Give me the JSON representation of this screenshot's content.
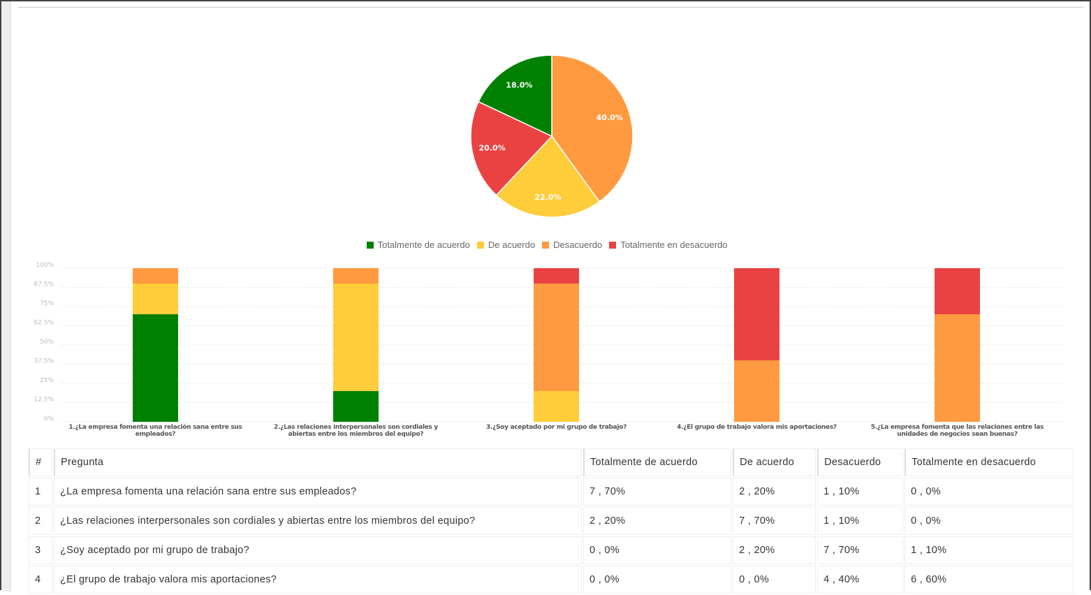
{
  "colors": {
    "Totalmente de acuerdo": "#008000",
    "De acuerdo": "#ffcc3a",
    "Desacuerdo": "#ff9a40",
    "Totalmente en desacuerdo": "#ea4242"
  },
  "chart_data": [
    {
      "type": "pie",
      "labels": [
        "Desacuerdo",
        "De acuerdo",
        "Totalmente en desacuerdo",
        "Totalmente de acuerdo"
      ],
      "values": [
        40,
        22,
        20,
        18
      ],
      "value_labels": [
        "40.0%",
        "22.0%",
        "20.0%",
        "18.0%"
      ]
    },
    {
      "type": "bar",
      "stacked": true,
      "categories": [
        "1.¿La empresa fomenta una relación sana entre sus empleados?",
        "2.¿Las relaciones interpersonales son cordiales y abiertas entre los miembros del equipo?",
        "3.¿Soy aceptado por mi grupo de trabajo?",
        "4.¿El grupo de trabajo valora mis aportaciones?",
        "5.¿La empresa fomenta que las relaciones entre las unidades de negocios sean buenas?"
      ],
      "series": [
        {
          "name": "Totalmente de acuerdo",
          "values": [
            70,
            20,
            0,
            0,
            0
          ]
        },
        {
          "name": "De acuerdo",
          "values": [
            20,
            70,
            20,
            0,
            0
          ]
        },
        {
          "name": "Desacuerdo",
          "values": [
            10,
            10,
            70,
            40,
            70
          ]
        },
        {
          "name": "Totalmente en desacuerdo",
          "values": [
            0,
            0,
            10,
            60,
            30
          ]
        }
      ],
      "ylim": [
        0,
        100
      ],
      "yticks": [
        "0%",
        "12.5%",
        "25%",
        "37.5%",
        "50%",
        "62.5%",
        "75%",
        "87.5%",
        "100%"
      ],
      "legend": "top-center",
      "grid": true
    }
  ],
  "legend": [
    "Totalmente de acuerdo",
    "De acuerdo",
    "Desacuerdo",
    "Totalmente en desacuerdo"
  ],
  "table": {
    "headers": [
      "#",
      "Pregunta",
      "Totalmente de acuerdo",
      "De acuerdo",
      "Desacuerdo",
      "Totalmente en desacuerdo"
    ],
    "rows": [
      [
        "1",
        "¿La empresa fomenta una relación sana entre sus empleados?",
        "7 , 70%",
        "2 , 20%",
        "1 , 10%",
        "0 , 0%"
      ],
      [
        "2",
        "¿Las relaciones interpersonales son cordiales y abiertas entre los miembros del equipo?",
        "2 , 20%",
        "7 , 70%",
        "1 , 10%",
        "0 , 0%"
      ],
      [
        "3",
        "¿Soy aceptado por mi grupo de trabajo?",
        "0 , 0%",
        "2 , 20%",
        "7 , 70%",
        "1 , 10%"
      ],
      [
        "4",
        "¿El grupo de trabajo valora mis aportaciones?",
        "0 , 0%",
        "0 , 0%",
        "4 , 40%",
        "6 , 60%"
      ]
    ]
  }
}
